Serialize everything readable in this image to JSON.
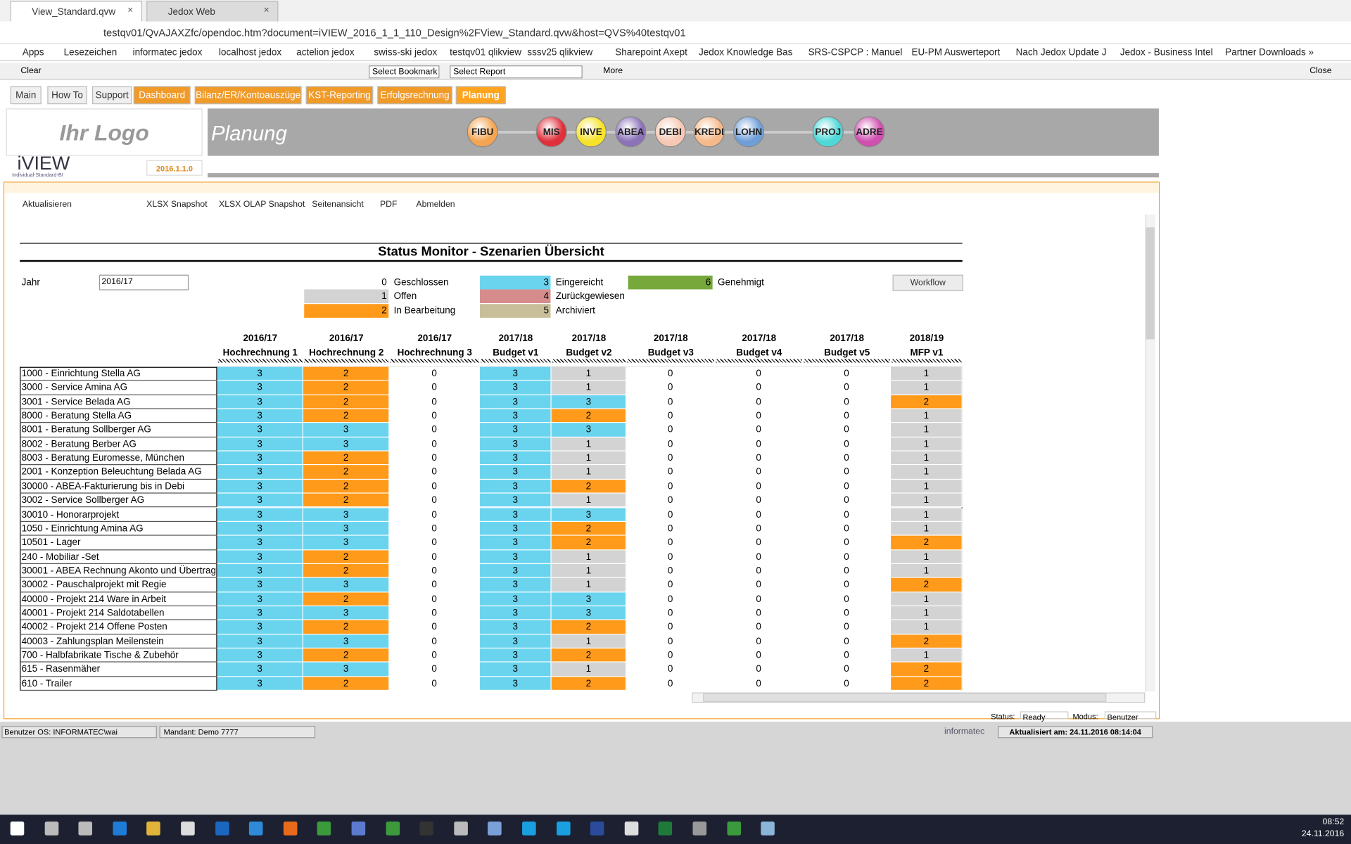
{
  "browser": {
    "tabs": [
      "View_Standard.qvw",
      "Jedox Web"
    ],
    "url": "testqv01/QvAJAXZfc/opendoc.htm?document=iVIEW_2016_1_1_110_Design%2FView_Standard.qvw&host=QVS%40testqv01",
    "bookmarks": [
      "Apps",
      "Lesezeichen",
      "informatec jedox",
      "localhost jedox",
      "actelion jedox",
      "swiss-ski jedox",
      "testqv01 qlikview",
      "sssv25 qlikview",
      "Sharepoint Axept",
      "Jedox Knowledge Bas",
      "SRS-CSPCP : Manuel",
      "EU-PM Auswerteport",
      "Nach Jedox Update J",
      "Jedox - Business Intel",
      "Partner Downloads »"
    ]
  },
  "qlik_toolbar": {
    "clear": "Clear",
    "bookmark": "Select Bookmark",
    "report": "Select Report",
    "more": "More",
    "close": "Close"
  },
  "sheet_tabs": [
    "Main",
    "How To",
    "Support",
    "Dashboard",
    "Bilanz/ER/Kontoauszüge",
    "KST-Reporting",
    "Erfolgsrechnung",
    "Planung"
  ],
  "header": {
    "logo": "Ihr Logo",
    "brand": "iVIEW",
    "brand_sub": "Individual-Standard-BI",
    "version": "2016.1.1.0",
    "page": "Planung",
    "modules": [
      {
        "label": "FIBU",
        "color": "#f5a552"
      },
      {
        "label": "MIS",
        "color": "#e0303c"
      },
      {
        "label": "INVE",
        "color": "#f7e32a"
      },
      {
        "label": "ABEA",
        "color": "#8c72b8"
      },
      {
        "label": "DEBI",
        "color": "#f6c8b4"
      },
      {
        "label": "KREDI",
        "color": "#f6b98a"
      },
      {
        "label": "LOHN",
        "color": "#6f9fd8"
      },
      {
        "label": "PROJ",
        "color": "#4fd8d8"
      },
      {
        "label": "ADRE",
        "color": "#d050b0"
      }
    ]
  },
  "toolbar": [
    "Aktualisieren",
    "XLSX Snapshot",
    "XLSX OLAP Snapshot",
    "Seitenansicht",
    "PDF",
    "Abmelden"
  ],
  "monitor": {
    "title": "Status Monitor -  Szenarien Übersicht",
    "year_label": "Jahr",
    "year": "2016/17",
    "button": "Workflow",
    "legend": [
      {
        "value": 0,
        "label": "Geschlossen",
        "color": "#ffffff"
      },
      {
        "value": 1,
        "label": "Offen",
        "color": "#d3d3d3"
      },
      {
        "value": 2,
        "label": "In Bearbeitung",
        "color": "#ff9a1a"
      },
      {
        "value": 3,
        "label": "Eingereicht",
        "color": "#6ad4ee"
      },
      {
        "value": 4,
        "label": "Zurückgewiesen",
        "color": "#d68c8c"
      },
      {
        "value": 5,
        "label": "Archiviert",
        "color": "#c8bf9a"
      },
      {
        "value": 6,
        "label": "Genehmigt",
        "color": "#76a83c"
      }
    ],
    "columns": [
      [
        "2016/17",
        "Hochrechnung 1"
      ],
      [
        "2016/17",
        "Hochrechnung 2"
      ],
      [
        "2016/17",
        "Hochrechnung 3"
      ],
      [
        "2017/18",
        "Budget v1"
      ],
      [
        "2017/18",
        "Budget v2"
      ],
      [
        "2017/18",
        "Budget v3"
      ],
      [
        "2017/18",
        "Budget v4"
      ],
      [
        "2017/18",
        "Budget v5"
      ],
      [
        "2018/19",
        "MFP v1"
      ]
    ],
    "rows": [
      {
        "name": "1000 - Einrichtung Stella AG",
        "values": [
          3,
          2,
          0,
          3,
          1,
          0,
          0,
          0,
          1
        ]
      },
      {
        "name": "3000 - Service Amina AG",
        "values": [
          3,
          2,
          0,
          3,
          1,
          0,
          0,
          0,
          1
        ]
      },
      {
        "name": "3001 - Service Belada AG",
        "values": [
          3,
          2,
          0,
          3,
          3,
          0,
          0,
          0,
          2
        ]
      },
      {
        "name": "8000 - Beratung Stella AG",
        "values": [
          3,
          2,
          0,
          3,
          2,
          0,
          0,
          0,
          1
        ]
      },
      {
        "name": "8001 - Beratung Sollberger AG",
        "values": [
          3,
          3,
          0,
          3,
          3,
          0,
          0,
          0,
          1
        ]
      },
      {
        "name": "8002 - Beratung Berber AG",
        "values": [
          3,
          3,
          0,
          3,
          1,
          0,
          0,
          0,
          1
        ]
      },
      {
        "name": "8003 - Beratung Euromesse, München",
        "values": [
          3,
          2,
          0,
          3,
          1,
          0,
          0,
          0,
          1
        ]
      },
      {
        "name": "2001 - Konzeption Beleuchtung Belada AG",
        "values": [
          3,
          2,
          0,
          3,
          1,
          0,
          0,
          0,
          1
        ]
      },
      {
        "name": "30000 - ABEA-Fakturierung bis in Debi",
        "values": [
          3,
          2,
          0,
          3,
          2,
          0,
          0,
          0,
          1
        ]
      },
      {
        "name": "3002 - Service Sollberger AG",
        "values": [
          3,
          2,
          0,
          3,
          1,
          0,
          0,
          0,
          1
        ]
      },
      {
        "name": "30010 - Honorarprojekt",
        "values": [
          3,
          3,
          0,
          3,
          3,
          0,
          0,
          0,
          1
        ]
      },
      {
        "name": "1050 - Einrichtung Amina AG",
        "values": [
          3,
          3,
          0,
          3,
          2,
          0,
          0,
          0,
          1
        ]
      },
      {
        "name": "10501 - Lager",
        "values": [
          3,
          3,
          0,
          3,
          2,
          0,
          0,
          0,
          2
        ]
      },
      {
        "name": "240 - Mobiliar -Set",
        "values": [
          3,
          2,
          0,
          3,
          1,
          0,
          0,
          0,
          1
        ]
      },
      {
        "name": "30001 - ABEA Rechnung Akonto und Übertrag",
        "values": [
          3,
          2,
          0,
          3,
          1,
          0,
          0,
          0,
          1
        ]
      },
      {
        "name": "30002 - Pauschalprojekt mit Regie",
        "values": [
          3,
          3,
          0,
          3,
          1,
          0,
          0,
          0,
          2
        ]
      },
      {
        "name": "40000 - Projekt 214 Ware in Arbeit",
        "values": [
          3,
          2,
          0,
          3,
          3,
          0,
          0,
          0,
          1
        ]
      },
      {
        "name": "40001 - Projekt 214 Saldotabellen",
        "values": [
          3,
          3,
          0,
          3,
          3,
          0,
          0,
          0,
          1
        ]
      },
      {
        "name": "40002 - Projekt 214 Offene Posten",
        "values": [
          3,
          2,
          0,
          3,
          2,
          0,
          0,
          0,
          1
        ]
      },
      {
        "name": "40003 - Zahlungsplan Meilenstein",
        "values": [
          3,
          3,
          0,
          3,
          1,
          0,
          0,
          0,
          2
        ]
      },
      {
        "name": "700 - Halbfabrikate Tische & Zubehör",
        "values": [
          3,
          2,
          0,
          3,
          2,
          0,
          0,
          0,
          1
        ]
      },
      {
        "name": "615 - Rasenmäher",
        "values": [
          3,
          3,
          0,
          3,
          1,
          0,
          0,
          0,
          2
        ]
      },
      {
        "name": "610 - Trailer",
        "values": [
          3,
          2,
          0,
          3,
          2,
          0,
          0,
          0,
          2
        ]
      }
    ]
  },
  "status": {
    "status_label": "Status:",
    "status": "Ready",
    "mode_label": "Modus:",
    "mode": "Benutzer"
  },
  "footer": {
    "user": "Benutzer OS: INFORMATEC\\wai",
    "client": "Mandant: Demo 7777",
    "company": "informatec",
    "updated": "Aktualisiert am: 24.11.2016 08:14:04"
  },
  "taskbar": {
    "time": "08:52",
    "date": "24.11.2016"
  }
}
